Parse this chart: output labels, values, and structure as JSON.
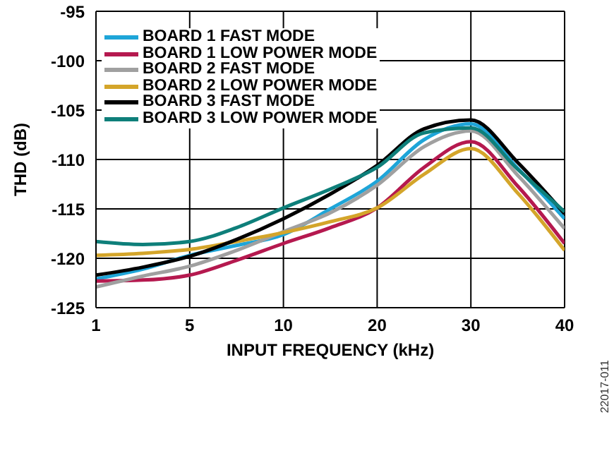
{
  "chart_data": {
    "type": "line",
    "xlabel": "INPUT FREQUENCY (kHz)",
    "ylabel": "THD (dB)",
    "categories": [
      "1",
      null,
      "5",
      null,
      "10",
      null,
      "20",
      null,
      "30",
      null,
      "40"
    ],
    "series": [
      {
        "name": "BOARD 1 FAST MODE",
        "color": "#1ea5d8",
        "values": [
          -122.1,
          -121.1,
          -119.7,
          -118.7,
          -117.6,
          -115.0,
          -112.2,
          -108.0,
          -106.4,
          -110.9,
          -116.0
        ]
      },
      {
        "name": "BOARD 1 LOW POWER MODE",
        "color": "#b5194f",
        "values": [
          -122.3,
          -122.2,
          -121.7,
          -120.2,
          -118.5,
          -116.9,
          -114.9,
          -110.8,
          -108.2,
          -112.7,
          -118.5
        ]
      },
      {
        "name": "BOARD 2 FAST MODE",
        "color": "#a0a0a0",
        "values": [
          -122.9,
          -121.8,
          -120.8,
          -119.2,
          -117.3,
          -115.4,
          -112.6,
          -108.7,
          -107.1,
          -111.6,
          -117.0
        ]
      },
      {
        "name": "BOARD 2 LOW POWER MODE",
        "color": "#d4a52a",
        "values": [
          -119.7,
          -119.5,
          -119.1,
          -118.3,
          -117.4,
          -116.3,
          -114.9,
          -111.5,
          -108.9,
          -113.4,
          -119.2
        ]
      },
      {
        "name": "BOARD 3 FAST MODE",
        "color": "#000000",
        "values": [
          -121.7,
          -120.9,
          -119.8,
          -118.1,
          -116.0,
          -113.5,
          -110.6,
          -106.9,
          -106.0,
          -110.3,
          -115.5
        ]
      },
      {
        "name": "BOARD 3 LOW POWER MODE",
        "color": "#0e7f7a",
        "values": [
          -118.3,
          -118.6,
          -118.3,
          -116.9,
          -114.9,
          -113.0,
          -110.8,
          -107.3,
          -106.8,
          -111.0,
          -115.3
        ]
      }
    ],
    "ylim": [
      -125,
      -95
    ],
    "yticks": [
      -95,
      -100,
      -105,
      -110,
      -115,
      -120,
      -125
    ],
    "grid": true,
    "legend": "top left",
    "marker": "none",
    "line_style": "solid",
    "annotations": [
      "22017-011"
    ]
  }
}
